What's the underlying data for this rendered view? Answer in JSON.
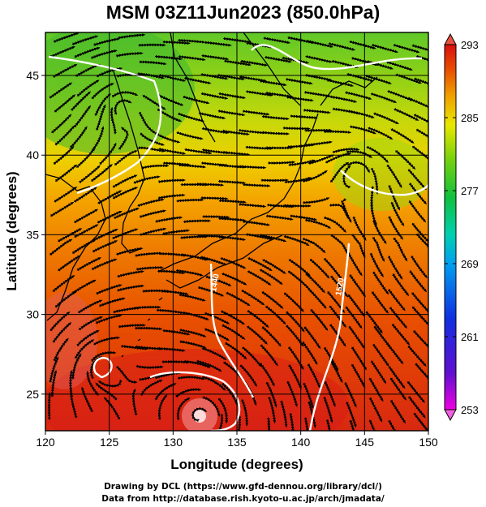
{
  "title": "MSM 03Z11Jun2023 (850.0hPa)",
  "xlabel": "Longitude (degrees)",
  "ylabel": "Latitude  (degrees)",
  "x_ticks": [
    "120",
    "125",
    "130",
    "135",
    "140",
    "145",
    "150"
  ],
  "y_ticks": [
    "25",
    "30",
    "35",
    "40",
    "45"
  ],
  "colorbar": {
    "ticks": [
      "293",
      "285",
      "277",
      "269",
      "261",
      "253"
    ],
    "min": 253,
    "max": 293,
    "colors": [
      "#f000e0",
      "#6010d0",
      "#1030e0",
      "#00a0f0",
      "#00d0b0",
      "#10c040",
      "#70d010",
      "#e8e800",
      "#f0a000",
      "#e85000",
      "#d81010"
    ]
  },
  "contour_labels": [
    "1440",
    "1520"
  ],
  "credit_line1": "Drawing by DCL (https://www.gfd-dennou.org/library/dcl/)",
  "credit_line2": "Data from http://database.rish.kyoto-u.ac.jp/arch/jmadata/",
  "map_extent": {
    "lon": [
      120,
      150
    ],
    "lat": [
      22.7,
      47.7
    ]
  }
}
